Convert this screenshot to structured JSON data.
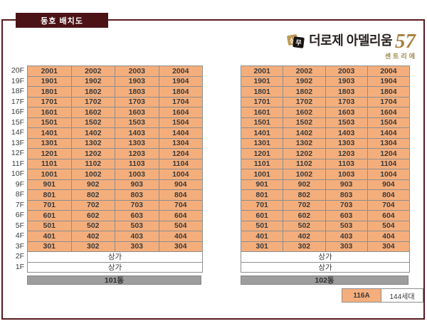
{
  "page": {
    "title": "동호 배치도"
  },
  "logo": {
    "badge_left": "상",
    "badge_right": "무",
    "name": "더로제 아델리움",
    "number": "57",
    "subtitle": "센트리에"
  },
  "table": {
    "shop_label": "상가",
    "floors": [
      {
        "label": "20F",
        "units": [
          "2001",
          "2002",
          "2003",
          "2004"
        ]
      },
      {
        "label": "19F",
        "units": [
          "1901",
          "1902",
          "1903",
          "1904"
        ]
      },
      {
        "label": "18F",
        "units": [
          "1801",
          "1802",
          "1803",
          "1804"
        ]
      },
      {
        "label": "17F",
        "units": [
          "1701",
          "1702",
          "1703",
          "1704"
        ]
      },
      {
        "label": "16F",
        "units": [
          "1601",
          "1602",
          "1603",
          "1604"
        ]
      },
      {
        "label": "15F",
        "units": [
          "1501",
          "1502",
          "1503",
          "1504"
        ]
      },
      {
        "label": "14F",
        "units": [
          "1401",
          "1402",
          "1403",
          "1404"
        ]
      },
      {
        "label": "13F",
        "units": [
          "1301",
          "1302",
          "1303",
          "1304"
        ]
      },
      {
        "label": "12F",
        "units": [
          "1201",
          "1202",
          "1203",
          "1204"
        ]
      },
      {
        "label": "11F",
        "units": [
          "1101",
          "1102",
          "1103",
          "1104"
        ]
      },
      {
        "label": "10F",
        "units": [
          "1001",
          "1002",
          "1003",
          "1004"
        ]
      },
      {
        "label": "9F",
        "units": [
          "901",
          "902",
          "903",
          "904"
        ]
      },
      {
        "label": "8F",
        "units": [
          "801",
          "802",
          "803",
          "804"
        ]
      },
      {
        "label": "7F",
        "units": [
          "701",
          "702",
          "703",
          "704"
        ]
      },
      {
        "label": "6F",
        "units": [
          "601",
          "602",
          "603",
          "604"
        ]
      },
      {
        "label": "5F",
        "units": [
          "501",
          "502",
          "503",
          "504"
        ]
      },
      {
        "label": "4F",
        "units": [
          "401",
          "402",
          "403",
          "404"
        ]
      },
      {
        "label": "3F",
        "units": [
          "301",
          "302",
          "303",
          "304"
        ]
      },
      {
        "label": "2F",
        "shop": true
      },
      {
        "label": "1F",
        "shop": true
      }
    ]
  },
  "buildings": [
    {
      "name": "101동"
    },
    {
      "name": "102동"
    }
  ],
  "legend": {
    "unit_type": "116A",
    "household_count": "144세대"
  },
  "colors": {
    "maroon": "#571a1e",
    "title_bg": "#4c1317",
    "unit_fill": "#f4ae7c",
    "grid_line": "#8e8e8e",
    "bar_fill": "#9d9d9d",
    "gold": "#a8813e"
  }
}
